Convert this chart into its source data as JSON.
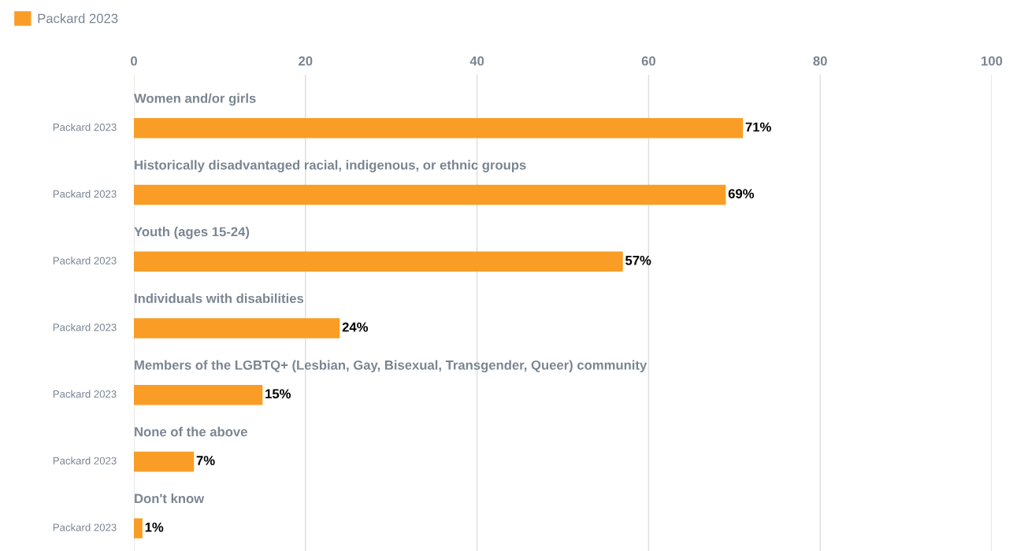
{
  "chart_data": {
    "type": "bar",
    "orientation": "horizontal",
    "categories": [
      "Women and/or girls",
      "Historically disadvantaged racial, indigenous, or ethnic groups",
      "Youth (ages 15-24)",
      "Individuals with disabilities",
      "Members of the LGBTQ+ (Lesbian, Gay, Bisexual, Transgender, Queer) community",
      "None of the above",
      "Don't know"
    ],
    "series": [
      {
        "name": "Packard 2023",
        "color": "#f99d26",
        "values": [
          71,
          69,
          57,
          24,
          15,
          7,
          1
        ],
        "value_labels": [
          "71%",
          "69%",
          "57%",
          "24%",
          "15%",
          "7%",
          "1%"
        ]
      }
    ],
    "xlim": [
      0,
      100
    ],
    "xticks": [
      0,
      20,
      40,
      60,
      80,
      100
    ],
    "grid": "x",
    "legend": "top left"
  }
}
